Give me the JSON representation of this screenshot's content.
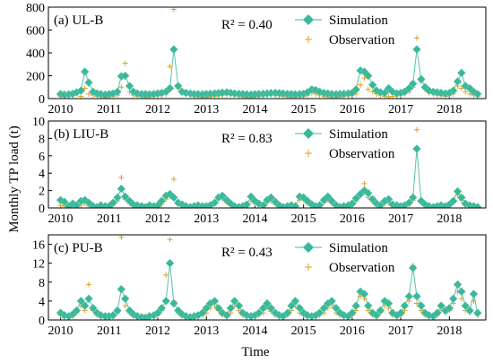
{
  "figure": {
    "ylabel": "Monthly TP load (t)",
    "xlabel": "Time",
    "colors": {
      "simulation": "#3bb89a",
      "observation": "#e0a020",
      "line": "#3bb89a"
    },
    "legend": {
      "simulation": "Simulation",
      "observation": "Observation"
    }
  },
  "chart_data": [
    {
      "type": "line",
      "title": "(a) UL-B",
      "annotation": "R² = 0.40",
      "xlabel": "",
      "ylabel": "Monthly TP load (t)",
      "ylim": [
        0,
        800
      ],
      "yticks": [
        0,
        200,
        400,
        600,
        800
      ],
      "xlim": [
        2009.75,
        2018.75
      ],
      "xticks": [
        2010,
        2011,
        2012,
        2013,
        2014,
        2015,
        2016,
        2017,
        2018
      ],
      "x": [
        2010.0,
        2010.08,
        2010.17,
        2010.25,
        2010.33,
        2010.42,
        2010.5,
        2010.58,
        2010.67,
        2010.75,
        2010.83,
        2010.92,
        2011.0,
        2011.08,
        2011.17,
        2011.25,
        2011.33,
        2011.42,
        2011.5,
        2011.58,
        2011.67,
        2011.75,
        2011.83,
        2011.92,
        2012.0,
        2012.08,
        2012.17,
        2012.25,
        2012.33,
        2012.42,
        2012.5,
        2012.58,
        2012.67,
        2012.75,
        2012.83,
        2012.92,
        2013.0,
        2013.08,
        2013.17,
        2013.25,
        2013.33,
        2013.42,
        2013.5,
        2013.58,
        2013.67,
        2013.75,
        2013.83,
        2013.92,
        2014.0,
        2014.08,
        2014.17,
        2014.25,
        2014.33,
        2014.42,
        2014.5,
        2014.58,
        2014.67,
        2014.75,
        2014.83,
        2014.92,
        2015.0,
        2015.08,
        2015.17,
        2015.25,
        2015.33,
        2015.42,
        2015.5,
        2015.58,
        2015.67,
        2015.75,
        2015.83,
        2015.92,
        2016.0,
        2016.08,
        2016.17,
        2016.25,
        2016.33,
        2016.42,
        2016.5,
        2016.58,
        2016.67,
        2016.75,
        2016.83,
        2016.92,
        2017.0,
        2017.08,
        2017.17,
        2017.25,
        2017.33,
        2017.42,
        2017.5,
        2017.58,
        2017.67,
        2017.75,
        2017.83,
        2017.92,
        2018.0,
        2018.08,
        2018.17,
        2018.25,
        2018.33,
        2018.42,
        2018.5,
        2018.58
      ],
      "series": [
        {
          "name": "Simulation",
          "values": [
            40,
            35,
            38,
            42,
            55,
            70,
            235,
            140,
            60,
            45,
            40,
            35,
            40,
            45,
            60,
            195,
            200,
            110,
            60,
            45,
            40,
            40,
            38,
            40,
            45,
            50,
            60,
            90,
            430,
            110,
            60,
            50,
            45,
            40,
            40,
            38,
            40,
            42,
            45,
            48,
            52,
            55,
            50,
            45,
            42,
            40,
            38,
            36,
            38,
            40,
            42,
            45,
            48,
            50,
            48,
            45,
            42,
            40,
            38,
            40,
            42,
            55,
            80,
            75,
            60,
            50,
            45,
            40,
            38,
            40,
            42,
            45,
            50,
            80,
            245,
            235,
            200,
            120,
            70,
            55,
            50,
            90,
            60,
            45,
            50,
            60,
            90,
            130,
            430,
            170,
            100,
            70,
            60,
            55,
            50,
            45,
            50,
            70,
            150,
            225,
            110,
            90,
            60,
            40
          ]
        },
        {
          "name": "Observation",
          "values": [
            20,
            15,
            25,
            30,
            40,
            20,
            90,
            40,
            30,
            20,
            15,
            10,
            15,
            20,
            30,
            100,
            310,
            60,
            30,
            20,
            15,
            10,
            15,
            20,
            25,
            30,
            40,
            280,
            780,
            90,
            50,
            40,
            30,
            20,
            15,
            10,
            10,
            15,
            20,
            25,
            30,
            35,
            40,
            30,
            20,
            15,
            10,
            10,
            15,
            20,
            25,
            30,
            35,
            30,
            25,
            20,
            15,
            10,
            10,
            15,
            20,
            30,
            50,
            40,
            30,
            20,
            15,
            10,
            10,
            15,
            20,
            25,
            30,
            40,
            120,
            180,
            80,
            60,
            40,
            30,
            20,
            15,
            20,
            25,
            30,
            40,
            60,
            100,
            530,
            150,
            80,
            50,
            40,
            30,
            25,
            20,
            30,
            40,
            110,
            90,
            60,
            40,
            30,
            20
          ]
        }
      ]
    },
    {
      "type": "line",
      "title": "(b) LIU-B",
      "annotation": "R² = 0.83",
      "xlabel": "",
      "ylabel": "Monthly TP load (t)",
      "ylim": [
        0,
        10
      ],
      "yticks": [
        0,
        2,
        4,
        6,
        8,
        10
      ],
      "xlim": [
        2009.75,
        2018.75
      ],
      "xticks": [
        2010,
        2011,
        2012,
        2013,
        2014,
        2015,
        2016,
        2017,
        2018
      ],
      "x": [
        2010.0,
        2010.08,
        2010.17,
        2010.25,
        2010.33,
        2010.42,
        2010.5,
        2010.58,
        2010.67,
        2010.75,
        2010.83,
        2010.92,
        2011.0,
        2011.08,
        2011.17,
        2011.25,
        2011.33,
        2011.42,
        2011.5,
        2011.58,
        2011.67,
        2011.75,
        2011.83,
        2011.92,
        2012.0,
        2012.08,
        2012.17,
        2012.25,
        2012.33,
        2012.42,
        2012.5,
        2012.58,
        2012.67,
        2012.75,
        2012.83,
        2012.92,
        2013.0,
        2013.08,
        2013.17,
        2013.25,
        2013.33,
        2013.42,
        2013.5,
        2013.58,
        2013.67,
        2013.75,
        2013.83,
        2013.92,
        2014.0,
        2014.08,
        2014.17,
        2014.25,
        2014.33,
        2014.42,
        2014.5,
        2014.58,
        2014.67,
        2014.75,
        2014.83,
        2014.92,
        2015.0,
        2015.08,
        2015.17,
        2015.25,
        2015.33,
        2015.42,
        2015.5,
        2015.58,
        2015.67,
        2015.75,
        2015.83,
        2015.92,
        2016.0,
        2016.08,
        2016.17,
        2016.25,
        2016.33,
        2016.42,
        2016.5,
        2016.58,
        2016.67,
        2016.75,
        2016.83,
        2016.92,
        2017.0,
        2017.08,
        2017.17,
        2017.25,
        2017.33,
        2017.42,
        2017.5,
        2017.58,
        2017.67,
        2017.75,
        2017.83,
        2017.92,
        2018.0,
        2018.08,
        2018.17,
        2018.25,
        2018.33,
        2018.42,
        2018.5,
        2018.58
      ],
      "series": [
        {
          "name": "Simulation",
          "values": [
            0.9,
            0.7,
            0.2,
            0.5,
            0.3,
            0.8,
            0.9,
            0.6,
            0.2,
            0.1,
            0.3,
            0.2,
            0.2,
            0.6,
            1.2,
            2.2,
            1.3,
            0.8,
            0.4,
            0.3,
            0.2,
            0.1,
            0.3,
            0.2,
            0.3,
            0.8,
            1.4,
            1.6,
            1.2,
            0.6,
            0.4,
            0.2,
            0.1,
            0.2,
            0.3,
            0.2,
            0.2,
            0.3,
            0.6,
            1.2,
            1.4,
            0.9,
            0.5,
            0.2,
            0.1,
            0.2,
            0.4,
            1.3,
            0.8,
            0.5,
            0.3,
            0.9,
            1.2,
            0.7,
            0.3,
            0.1,
            0.2,
            0.3,
            0.2,
            1.3,
            1.2,
            0.8,
            0.4,
            0.2,
            0.3,
            0.9,
            1.3,
            0.8,
            0.3,
            0.1,
            0.2,
            0.3,
            0.5,
            1.1,
            1.6,
            2.0,
            1.7,
            1.0,
            0.5,
            0.3,
            0.8,
            1.0,
            0.4,
            0.3,
            0.2,
            0.3,
            0.6,
            1.2,
            6.8,
            0.8,
            0.4,
            0.2,
            0.1,
            0.2,
            0.3,
            0.2,
            0.4,
            0.8,
            1.9,
            1.2,
            0.5,
            0.3,
            0.2,
            0.1
          ]
        },
        {
          "name": "Observation",
          "values": [
            0.3,
            0.2,
            0.1,
            0.2,
            0.1,
            0.3,
            0.5,
            0.2,
            0.1,
            0.0,
            0.1,
            0.1,
            0.1,
            0.3,
            0.8,
            3.5,
            1.0,
            0.5,
            0.2,
            0.1,
            0.1,
            0.0,
            0.1,
            0.1,
            0.1,
            0.4,
            1.0,
            1.3,
            3.3,
            0.4,
            0.2,
            0.1,
            0.0,
            0.1,
            0.1,
            0.1,
            0.1,
            0.2,
            0.5,
            1.2,
            1.0,
            0.6,
            0.3,
            0.1,
            0.0,
            0.1,
            0.2,
            0.8,
            0.5,
            0.3,
            0.2,
            0.6,
            0.8,
            0.4,
            0.2,
            0.1,
            0.1,
            0.2,
            0.1,
            0.9,
            0.9,
            0.5,
            0.2,
            0.1,
            0.2,
            0.6,
            0.9,
            0.5,
            0.2,
            0.0,
            0.1,
            0.2,
            0.3,
            0.8,
            1.4,
            2.8,
            1.2,
            0.7,
            0.3,
            0.2,
            0.5,
            0.6,
            0.2,
            0.1,
            0.1,
            0.2,
            0.4,
            0.9,
            9.0,
            0.6,
            0.3,
            0.1,
            0.0,
            0.1,
            0.2,
            0.1,
            0.2,
            0.6,
            1.5,
            0.9,
            0.3,
            0.2,
            0.1,
            0.0
          ]
        }
      ]
    },
    {
      "type": "line",
      "title": "(c) PU-B",
      "annotation": "R² = 0.43",
      "xlabel": "Time",
      "ylabel": "Monthly TP load (t)",
      "ylim": [
        0,
        18
      ],
      "yticks": [
        0,
        4,
        8,
        12,
        16
      ],
      "xlim": [
        2009.75,
        2018.75
      ],
      "xticks": [
        2010,
        2011,
        2012,
        2013,
        2014,
        2015,
        2016,
        2017,
        2018
      ],
      "x": [
        2010.0,
        2010.08,
        2010.17,
        2010.25,
        2010.33,
        2010.42,
        2010.5,
        2010.58,
        2010.67,
        2010.75,
        2010.83,
        2010.92,
        2011.0,
        2011.08,
        2011.17,
        2011.25,
        2011.33,
        2011.42,
        2011.5,
        2011.58,
        2011.67,
        2011.75,
        2011.83,
        2011.92,
        2012.0,
        2012.08,
        2012.17,
        2012.25,
        2012.33,
        2012.42,
        2012.5,
        2012.58,
        2012.67,
        2012.75,
        2012.83,
        2012.92,
        2013.0,
        2013.08,
        2013.17,
        2013.25,
        2013.33,
        2013.42,
        2013.5,
        2013.58,
        2013.67,
        2013.75,
        2013.83,
        2013.92,
        2014.0,
        2014.08,
        2014.17,
        2014.25,
        2014.33,
        2014.42,
        2014.5,
        2014.58,
        2014.67,
        2014.75,
        2014.83,
        2014.92,
        2015.0,
        2015.08,
        2015.17,
        2015.25,
        2015.33,
        2015.42,
        2015.5,
        2015.58,
        2015.67,
        2015.75,
        2015.83,
        2015.92,
        2016.0,
        2016.08,
        2016.17,
        2016.25,
        2016.33,
        2016.42,
        2016.5,
        2016.58,
        2016.67,
        2016.75,
        2016.83,
        2016.92,
        2017.0,
        2017.08,
        2017.17,
        2017.25,
        2017.33,
        2017.42,
        2017.5,
        2017.58,
        2017.67,
        2017.75,
        2017.83,
        2017.92,
        2018.0,
        2018.08,
        2018.17,
        2018.25,
        2018.33,
        2018.42,
        2018.5,
        2018.58
      ],
      "series": [
        {
          "name": "Simulation",
          "values": [
            1.5,
            1.0,
            0.8,
            1.2,
            2.0,
            4.0,
            3.0,
            4.5,
            2.5,
            1.5,
            1.0,
            0.8,
            0.8,
            1.0,
            2.0,
            6.5,
            4.5,
            2.0,
            1.2,
            0.8,
            0.6,
            0.5,
            0.8,
            1.0,
            1.5,
            2.5,
            4.0,
            12.0,
            3.5,
            2.0,
            1.2,
            0.8,
            0.6,
            0.8,
            1.0,
            1.5,
            2.5,
            3.5,
            4.0,
            2.5,
            1.5,
            1.0,
            2.5,
            4.0,
            3.0,
            1.5,
            1.0,
            0.8,
            1.0,
            1.5,
            2.5,
            3.5,
            2.5,
            1.5,
            1.0,
            0.8,
            1.5,
            3.0,
            4.0,
            2.5,
            1.5,
            1.0,
            0.8,
            1.0,
            1.5,
            2.5,
            3.5,
            4.0,
            2.5,
            1.5,
            1.0,
            0.8,
            1.5,
            3.0,
            6.0,
            5.5,
            3.0,
            1.5,
            1.0,
            2.0,
            4.0,
            3.5,
            1.5,
            1.0,
            1.5,
            3.0,
            5.0,
            11.0,
            5.0,
            3.0,
            1.5,
            1.0,
            0.8,
            1.5,
            3.0,
            2.0,
            2.5,
            4.5,
            7.5,
            6.0,
            3.0,
            2.0,
            5.5,
            1.5
          ]
        },
        {
          "name": "Observation",
          "values": [
            1.0,
            0.5,
            0.5,
            0.8,
            1.5,
            3.0,
            2.0,
            7.5,
            2.0,
            1.0,
            0.5,
            0.4,
            0.4,
            0.6,
            1.5,
            17.5,
            3.0,
            1.5,
            0.8,
            0.5,
            0.4,
            0.3,
            0.5,
            0.6,
            1.0,
            2.0,
            9.5,
            17.0,
            4.0,
            1.5,
            0.8,
            0.5,
            0.4,
            0.5,
            0.6,
            1.0,
            1.5,
            2.5,
            3.0,
            2.0,
            1.0,
            0.6,
            1.5,
            3.0,
            2.0,
            1.0,
            0.6,
            0.5,
            0.6,
            1.0,
            1.5,
            2.5,
            1.8,
            1.0,
            0.6,
            0.5,
            1.0,
            2.0,
            3.0,
            1.5,
            1.0,
            0.6,
            0.5,
            0.6,
            1.0,
            1.5,
            2.5,
            3.0,
            1.5,
            1.0,
            0.6,
            0.5,
            1.0,
            2.0,
            5.0,
            4.5,
            2.0,
            1.0,
            0.6,
            1.5,
            3.0,
            2.5,
            1.0,
            0.6,
            1.0,
            2.0,
            4.0,
            11.5,
            3.5,
            2.0,
            1.0,
            0.6,
            0.5,
            1.0,
            2.0,
            1.5,
            2.0,
            3.5,
            6.0,
            4.5,
            2.0,
            1.5,
            4.0,
            1.0
          ]
        }
      ]
    }
  ]
}
